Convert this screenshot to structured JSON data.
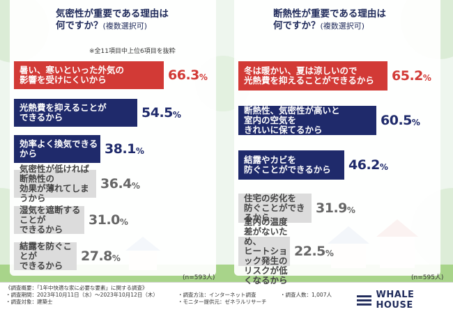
{
  "chart_data": [
    {
      "type": "bar",
      "title": "気密性が重要である理由は",
      "title_line2": "何ですか？",
      "subtitle": "(複数選択可)",
      "note": "※全11項目中上位6項目を抜粋",
      "n_label": "(n=593人)",
      "categories": [
        "暑い、寒いといった外気の\n影響を受けにくいから",
        "光熱費を抑えることが\nできるから",
        "効率よく換気できるから",
        "気密性が低ければ断熱性の\n効果が薄れてしまうから",
        "湿気を遮断することが\nできるから",
        "結露を防ぐことが\nできるから"
      ],
      "values": [
        66.3,
        54.5,
        38.1,
        36.4,
        31.0,
        27.8
      ],
      "value_labels": [
        "66.3",
        "54.5",
        "38.1",
        "36.4",
        "31.0",
        "27.8"
      ],
      "colors": [
        "#d23a36",
        "#1f2a6b",
        "#1f2a6b",
        "#dcdcdc",
        "#dcdcdc",
        "#dcdcdc"
      ],
      "text_colors": [
        "#ffffff",
        "#ffffff",
        "#ffffff",
        "#444444",
        "#444444",
        "#444444"
      ],
      "pct_colors": [
        "#d23a36",
        "#1f2a6b",
        "#1f2a6b",
        "#666666",
        "#666666",
        "#666666"
      ]
    },
    {
      "type": "bar",
      "title": "断熱性が重要である理由は",
      "title_line2": "何ですか？",
      "subtitle": "(複数選択可)",
      "n_label": "(n=595人)",
      "categories": [
        "冬は暖かい、夏は涼しいので\n光熱費を抑えることができるから",
        "断熱性、気密性が高いと\n室内の空気を\nきれいに保てるから",
        "結露やカビを\n防ぐことができるから",
        "住宅の劣化を\n防ぐことができるから",
        "室内の温度差がないため、\nヒートショック発生の\nリスクが低くなるから"
      ],
      "values": [
        65.2,
        60.5,
        46.2,
        31.9,
        22.5
      ],
      "value_labels": [
        "65.2",
        "60.5",
        "46.2",
        "31.9",
        "22.5"
      ],
      "colors": [
        "#d23a36",
        "#1f2a6b",
        "#1f2a6b",
        "#dcdcdc",
        "#dcdcdc"
      ],
      "text_colors": [
        "#ffffff",
        "#ffffff",
        "#ffffff",
        "#444444",
        "#444444"
      ],
      "pct_colors": [
        "#d23a36",
        "#1f2a6b",
        "#1f2a6b",
        "#666666",
        "#666666"
      ]
    }
  ],
  "unit": "%",
  "footer": {
    "line1": "《調査概要：「1年中快適な家に必要な要素」に関する調査》",
    "period": "・調査期間：2023年10月11日（水）〜2023年10月12日（木）",
    "target": "・調査対象：建築士",
    "method": "・調査方法：インターネット調査",
    "provider": "・モニター提供元：ゼネラルリサーチ",
    "count": "・調査人数：1,007人",
    "logo": "WHALE HOUSE"
  }
}
